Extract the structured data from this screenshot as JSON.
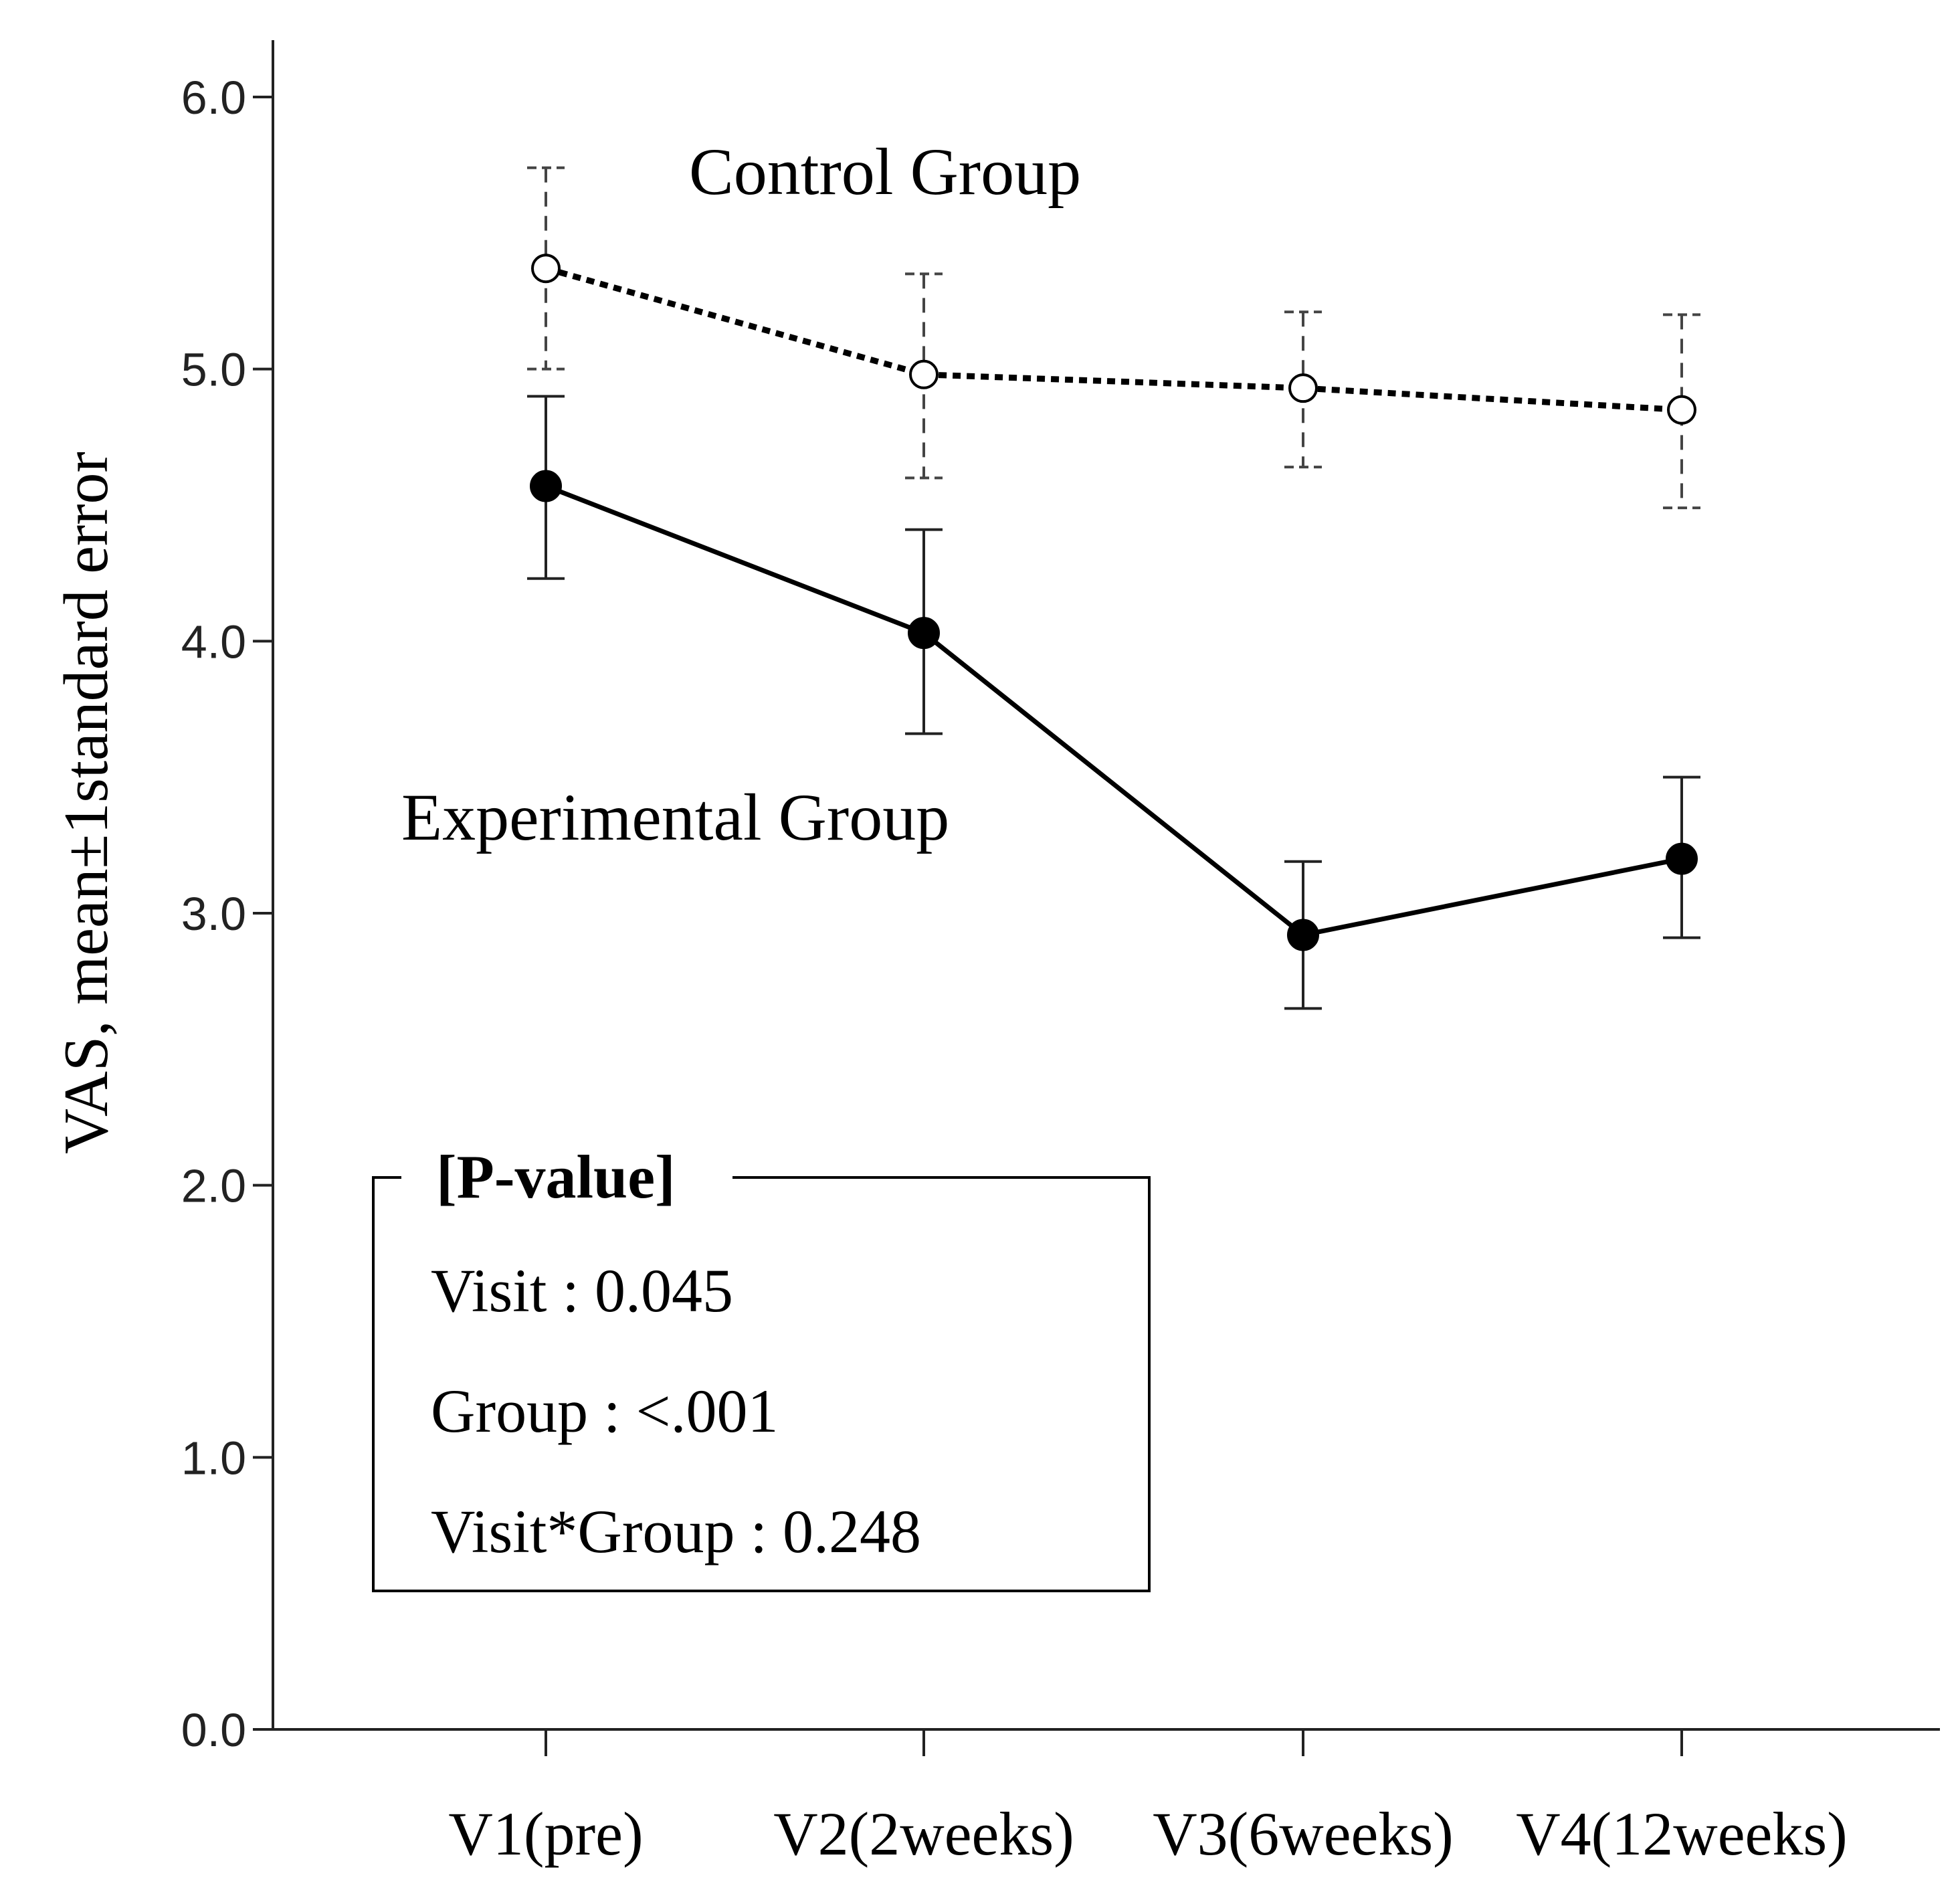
{
  "chart_data": {
    "type": "line",
    "ylabel": "VAS, mean±1standard error",
    "xlabel": "",
    "ylim": [
      0,
      6
    ],
    "yticks": [
      "0.0",
      "1.0",
      "2.0",
      "3.0",
      "4.0",
      "5.0",
      "6.0"
    ],
    "categories": [
      "V1(pre)",
      "V2(2weeks)",
      "V3(6weeks)",
      "V4(12weeks)"
    ],
    "series": [
      {
        "name": "Control Group",
        "values": [
          5.37,
          4.98,
          4.93,
          4.85
        ],
        "error_low": [
          5.0,
          4.6,
          4.64,
          4.49
        ],
        "error_high": [
          5.74,
          5.35,
          5.21,
          5.2
        ],
        "marker": "open-circle",
        "line": "dotted",
        "color": "#000000"
      },
      {
        "name": "Experimental Group",
        "values": [
          4.57,
          4.03,
          2.92,
          3.2
        ],
        "error_low": [
          4.23,
          3.66,
          2.65,
          2.91
        ],
        "error_high": [
          4.9,
          4.41,
          3.19,
          3.5
        ],
        "marker": "filled-circle",
        "line": "solid",
        "color": "#000000"
      }
    ],
    "annotation": {
      "title": "[P-value]",
      "lines": [
        "Visit : 0.045",
        "Group : <.001",
        "Visit*Group : 0.248"
      ]
    },
    "grid": false,
    "legend": "none"
  }
}
